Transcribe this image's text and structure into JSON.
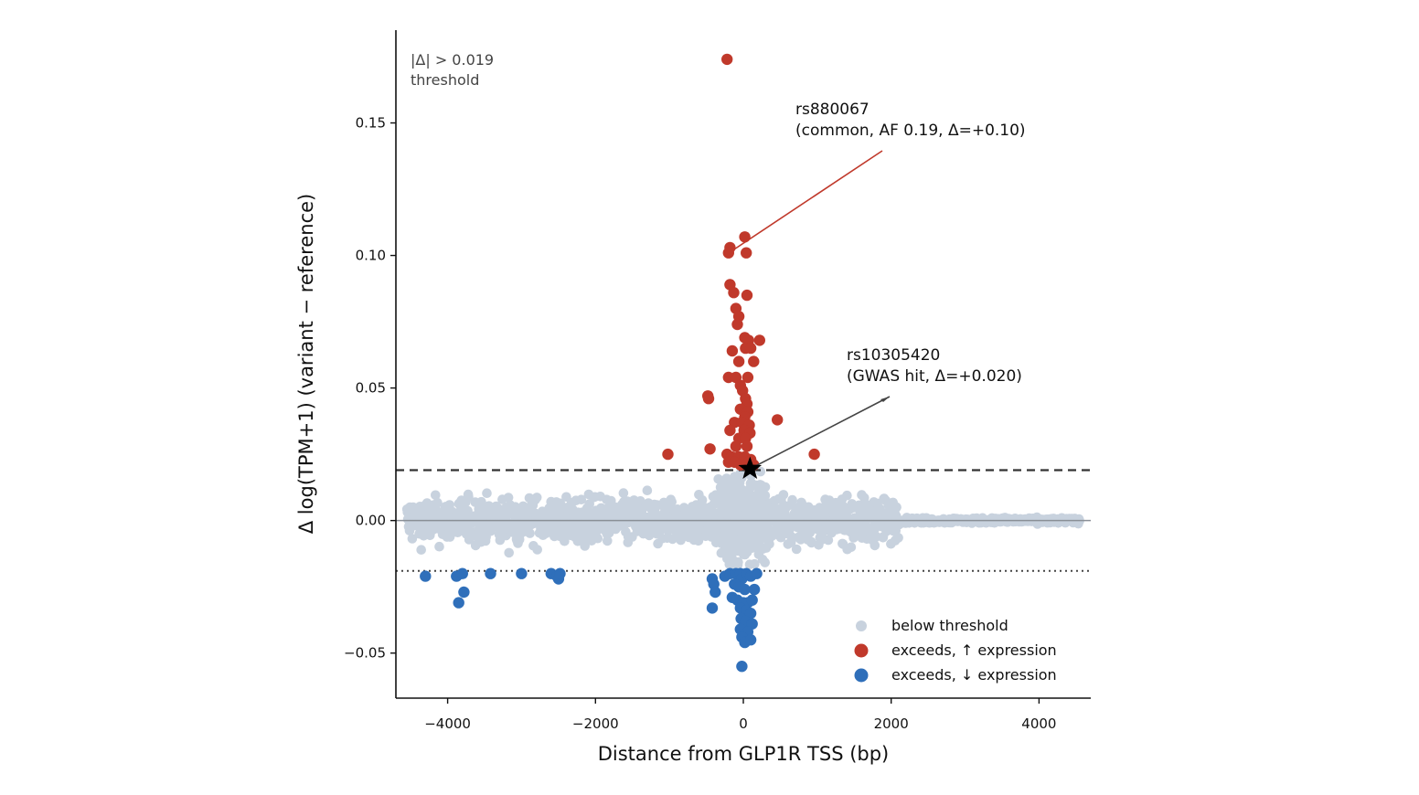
{
  "chart_data": {
    "type": "scatter",
    "xlabel": "Distance from GLP1R TSS (bp)",
    "ylabel": "Δ log(TPM+1)  (variant − reference)",
    "xlim": [
      -4700,
      4700
    ],
    "ylim": [
      -0.067,
      0.185
    ],
    "xticks": [
      -4000,
      -2000,
      0,
      2000,
      4000
    ],
    "xtick_labels": [
      "−4000",
      "−2000",
      "0",
      "2000",
      "4000"
    ],
    "yticks": [
      -0.05,
      0.0,
      0.05,
      0.1,
      0.15
    ],
    "ytick_labels": [
      "−0.05",
      "0.00",
      "0.05",
      "0.10",
      "0.15"
    ],
    "threshold": {
      "value": 0.019,
      "label_line1": "|Δ| > 0.019",
      "label_line2": "threshold"
    },
    "colors": {
      "below": "#c8d2de",
      "up": "#c0392b",
      "down": "#2f6fba",
      "zero_line": "#8a8f96",
      "up_arrow": "#c0392b",
      "gwas_arrow": "#444444"
    },
    "legend": {
      "position": "lower right",
      "entries": [
        "below threshold",
        "exceeds, ↑ expression",
        "exceeds, ↓ expression"
      ]
    },
    "series_up": {
      "name": "exceeds, ↑ expression",
      "points": [
        [
          -220,
          0.174
        ],
        [
          -180,
          0.103
        ],
        [
          -200,
          0.101
        ],
        [
          20,
          0.107
        ],
        [
          40,
          0.101
        ],
        [
          -180,
          0.089
        ],
        [
          -130,
          0.086
        ],
        [
          50,
          0.085
        ],
        [
          -100,
          0.08
        ],
        [
          -60,
          0.077
        ],
        [
          -80,
          0.074
        ],
        [
          20,
          0.069
        ],
        [
          70,
          0.068
        ],
        [
          220,
          0.068
        ],
        [
          -150,
          0.064
        ],
        [
          30,
          0.065
        ],
        [
          100,
          0.065
        ],
        [
          140,
          0.06
        ],
        [
          -60,
          0.06
        ],
        [
          -200,
          0.054
        ],
        [
          -100,
          0.054
        ],
        [
          60,
          0.054
        ],
        [
          -40,
          0.051
        ],
        [
          -10,
          0.049
        ],
        [
          -480,
          0.047
        ],
        [
          -470,
          0.046
        ],
        [
          30,
          0.046
        ],
        [
          50,
          0.044
        ],
        [
          -40,
          0.042
        ],
        [
          60,
          0.041
        ],
        [
          20,
          0.039
        ],
        [
          460,
          0.038
        ],
        [
          -120,
          0.037
        ],
        [
          -20,
          0.037
        ],
        [
          80,
          0.036
        ],
        [
          -180,
          0.034
        ],
        [
          10,
          0.034
        ],
        [
          90,
          0.033
        ],
        [
          -60,
          0.031
        ],
        [
          30,
          0.031
        ],
        [
          -450,
          0.027
        ],
        [
          -100,
          0.028
        ],
        [
          50,
          0.028
        ],
        [
          -1020,
          0.025
        ],
        [
          960,
          0.025
        ],
        [
          -220,
          0.025
        ],
        [
          -160,
          0.024
        ],
        [
          -60,
          0.024
        ],
        [
          20,
          0.024
        ],
        [
          100,
          0.023
        ],
        [
          -200,
          0.022
        ],
        [
          -120,
          0.022
        ],
        [
          0,
          0.022
        ],
        [
          70,
          0.022
        ],
        [
          -40,
          0.021
        ],
        [
          40,
          0.021
        ],
        [
          140,
          0.021
        ]
      ]
    },
    "series_down": {
      "name": "exceeds, ↓ expression",
      "points": [
        [
          -4300,
          -0.021
        ],
        [
          -3880,
          -0.021
        ],
        [
          -3800,
          -0.02
        ],
        [
          -3420,
          -0.02
        ],
        [
          -3000,
          -0.02
        ],
        [
          -2600,
          -0.02
        ],
        [
          -2520,
          -0.021
        ],
        [
          -2500,
          -0.022
        ],
        [
          -2480,
          -0.02
        ],
        [
          -3850,
          -0.031
        ],
        [
          -3780,
          -0.027
        ],
        [
          -420,
          -0.022
        ],
        [
          -400,
          -0.024
        ],
        [
          -380,
          -0.027
        ],
        [
          -420,
          -0.033
        ],
        [
          -250,
          -0.021
        ],
        [
          -180,
          -0.02
        ],
        [
          -100,
          -0.02
        ],
        [
          -40,
          -0.02
        ],
        [
          -20,
          -0.022
        ],
        [
          40,
          -0.02
        ],
        [
          100,
          -0.021
        ],
        [
          180,
          -0.02
        ],
        [
          -120,
          -0.024
        ],
        [
          -60,
          -0.025
        ],
        [
          20,
          -0.026
        ],
        [
          150,
          -0.026
        ],
        [
          -150,
          -0.029
        ],
        [
          -80,
          -0.03
        ],
        [
          0,
          -0.031
        ],
        [
          60,
          -0.031
        ],
        [
          120,
          -0.03
        ],
        [
          -40,
          -0.033
        ],
        [
          40,
          -0.034
        ],
        [
          100,
          -0.035
        ],
        [
          -30,
          -0.037
        ],
        [
          30,
          -0.038
        ],
        [
          120,
          -0.039
        ],
        [
          -40,
          -0.041
        ],
        [
          60,
          -0.042
        ],
        [
          -20,
          -0.044
        ],
        [
          20,
          -0.046
        ],
        [
          100,
          -0.045
        ],
        [
          -20,
          -0.055
        ]
      ]
    },
    "annotations": [
      {
        "type": "up",
        "line1": "rs880067",
        "line2": "(common, AF 0.19, Δ=+0.10)",
        "point": [
          -140,
          0.102
        ],
        "text_anchor": [
          720,
          0.14
        ]
      },
      {
        "type": "gwas",
        "line1": "rs10305420",
        "line2": "(GWAS hit, Δ=+0.020)",
        "point": [
          90,
          0.0195
        ],
        "text_anchor": [
          1400,
          0.046
        ]
      }
    ]
  }
}
